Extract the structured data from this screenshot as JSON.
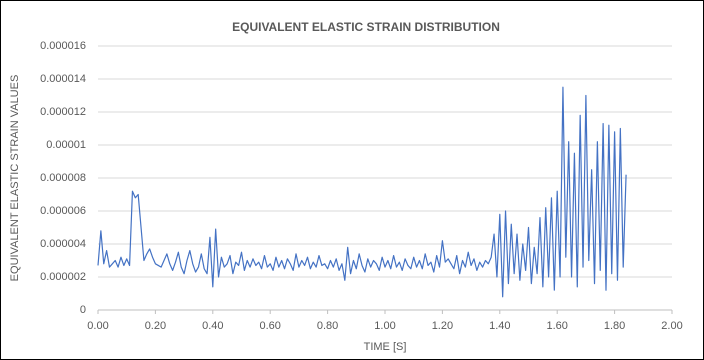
{
  "chart_data": {
    "type": "line",
    "title": "EQUIVALENT ELASTIC STRAIN DISTRIBUTION",
    "x_label": "TIME [S]",
    "y_label": "EQUIVALENT ELASTIC STRAIN VALUES",
    "xlim": [
      0,
      2
    ],
    "ylim": [
      0,
      1.6e-05
    ],
    "xticks": [
      {
        "value": 0,
        "label": "0.00"
      },
      {
        "value": 0.2,
        "label": "0.20"
      },
      {
        "value": 0.4,
        "label": "0.40"
      },
      {
        "value": 0.6,
        "label": "0.60"
      },
      {
        "value": 0.8,
        "label": "0.80"
      },
      {
        "value": 1,
        "label": "1.00"
      },
      {
        "value": 1.2,
        "label": "1.20"
      },
      {
        "value": 1.4,
        "label": "1.40"
      },
      {
        "value": 1.6,
        "label": "1.60"
      },
      {
        "value": 1.8,
        "label": "1.80"
      },
      {
        "value": 2,
        "label": "2.00"
      }
    ],
    "yticks": [
      0,
      2e-06,
      4e-06,
      6e-06,
      8e-06,
      1e-05,
      1.2e-05,
      1.4e-05,
      1.6e-05
    ],
    "grid": true,
    "x": [
      0,
      0.01,
      0.02,
      0.03,
      0.04,
      0.05,
      0.06,
      0.07,
      0.08,
      0.09,
      0.1,
      0.11,
      0.12,
      0.13,
      0.14,
      0.15,
      0.16,
      0.17,
      0.18,
      0.19,
      0.2,
      0.21,
      0.22,
      0.23,
      0.24,
      0.25,
      0.26,
      0.27,
      0.28,
      0.29,
      0.3,
      0.31,
      0.32,
      0.33,
      0.34,
      0.35,
      0.36,
      0.37,
      0.38,
      0.39,
      0.4,
      0.41,
      0.42,
      0.43,
      0.44,
      0.45,
      0.46,
      0.47,
      0.48,
      0.49,
      0.5,
      0.51,
      0.52,
      0.53,
      0.54,
      0.55,
      0.56,
      0.57,
      0.58,
      0.59,
      0.6,
      0.61,
      0.62,
      0.63,
      0.64,
      0.65,
      0.66,
      0.67,
      0.68,
      0.69,
      0.7,
      0.71,
      0.72,
      0.73,
      0.74,
      0.75,
      0.76,
      0.77,
      0.78,
      0.79,
      0.8,
      0.81,
      0.82,
      0.83,
      0.84,
      0.85,
      0.86,
      0.87,
      0.88,
      0.89,
      0.9,
      0.91,
      0.92,
      0.93,
      0.94,
      0.95,
      0.96,
      0.97,
      0.98,
      0.99,
      1,
      1.01,
      1.02,
      1.03,
      1.04,
      1.05,
      1.06,
      1.07,
      1.08,
      1.09,
      1.1,
      1.11,
      1.12,
      1.13,
      1.14,
      1.15,
      1.16,
      1.17,
      1.18,
      1.19,
      1.2,
      1.21,
      1.22,
      1.23,
      1.24,
      1.25,
      1.26,
      1.27,
      1.28,
      1.29,
      1.3,
      1.31,
      1.32,
      1.33,
      1.34,
      1.35,
      1.36,
      1.37,
      1.38,
      1.39,
      1.4,
      1.41,
      1.42,
      1.43,
      1.44,
      1.45,
      1.46,
      1.47,
      1.48,
      1.49,
      1.5,
      1.51,
      1.52,
      1.53,
      1.54,
      1.55,
      1.56,
      1.57,
      1.58,
      1.59,
      1.6,
      1.61,
      1.62,
      1.63,
      1.64,
      1.65,
      1.66,
      1.67,
      1.68,
      1.69,
      1.7,
      1.71,
      1.72,
      1.73,
      1.74,
      1.75,
      1.76,
      1.77,
      1.78,
      1.79,
      1.8,
      1.81,
      1.82,
      1.83,
      1.84
    ],
    "series": [
      {
        "name": "Equivalent Elastic Strain",
        "color": "#4472c4",
        "values": [
          2.7e-06,
          4.8e-06,
          2.8e-06,
          3.6e-06,
          2.6e-06,
          2.8e-06,
          3e-06,
          2.6e-06,
          3.2e-06,
          2.7e-06,
          3.1e-06,
          2.7e-06,
          7.2e-06,
          6.8e-06,
          7e-06,
          5e-06,
          3e-06,
          3.4e-06,
          3.7e-06,
          3.2e-06,
          2.8e-06,
          2.7e-06,
          2.6e-06,
          3e-06,
          3.4e-06,
          2.8e-06,
          2.4e-06,
          2.9e-06,
          3.5e-06,
          2.6e-06,
          2.2e-06,
          3e-06,
          3.6e-06,
          2.8e-06,
          2.3e-06,
          2.6e-06,
          3.4e-06,
          2.5e-06,
          2.2e-06,
          4.4e-06,
          1.4e-06,
          4.9e-06,
          2e-06,
          3.2e-06,
          2.6e-06,
          2.8e-06,
          3.3e-06,
          2.2e-06,
          2.9e-06,
          2.7e-06,
          3.5e-06,
          2.4e-06,
          3e-06,
          2.6e-06,
          3.1e-06,
          2.7e-06,
          2.9e-06,
          2.5e-06,
          3.3e-06,
          2.6e-06,
          2.8e-06,
          2.4e-06,
          3.2e-06,
          2.6e-06,
          3e-06,
          2.5e-06,
          3.1e-06,
          2.8e-06,
          2.4e-06,
          3.4e-06,
          2.6e-06,
          3e-06,
          2.7e-06,
          3.2e-06,
          2.5e-06,
          2.9e-06,
          2.6e-06,
          3.3e-06,
          2.7e-06,
          2.8e-06,
          2.5e-06,
          3e-06,
          2.6e-06,
          3.1e-06,
          2.4e-06,
          2.8e-06,
          1.8e-06,
          3.8e-06,
          2.2e-06,
          3e-06,
          2.5e-06,
          3.4e-06,
          2.7e-06,
          2.3e-06,
          3.1e-06,
          2.6e-06,
          3e-06,
          2.8e-06,
          2.4e-06,
          3.2e-06,
          2.6e-06,
          3e-06,
          2.5e-06,
          3.3e-06,
          2.6e-06,
          2.9e-06,
          2.4e-06,
          3.1e-06,
          2.7e-06,
          2.5e-06,
          3.2e-06,
          2.6e-06,
          3e-06,
          2.5e-06,
          3.4e-06,
          2.7e-06,
          2.9e-06,
          2.3e-06,
          3.3e-06,
          2.6e-06,
          4.2e-06,
          2.9e-06,
          3.1e-06,
          2.8e-06,
          2.5e-06,
          3.3e-06,
          2.2e-06,
          3e-06,
          2.6e-06,
          3.5e-06,
          2.7e-06,
          3.1e-06,
          2.4e-06,
          2.9e-06,
          2.6e-06,
          3e-06,
          2.8e-06,
          3.2e-06,
          4.6e-06,
          2e-06,
          5.8e-06,
          8e-07,
          6e-06,
          1.6e-06,
          5.2e-06,
          2.2e-06,
          4.6e-06,
          1.8e-06,
          4e-06,
          2.4e-06,
          5e-06,
          1.6e-06,
          3.8e-06,
          2.2e-06,
          5.6e-06,
          1.4e-06,
          6.2e-06,
          2e-06,
          6.8e-06,
          1.2e-06,
          7.2e-06,
          2e-06,
          1.35e-05,
          3.2e-06,
          1.02e-05,
          2e-06,
          9.5e-06,
          1.4e-06,
          1.18e-05,
          2.6e-06,
          1.3e-05,
          3e-06,
          8.5e-06,
          1.6e-06,
          1.02e-05,
          2.4e-06,
          1.13e-05,
          1.2e-06,
          1.12e-05,
          2.2e-06,
          1.08e-05,
          1.8e-06,
          1.1e-05,
          2.6e-06,
          8.2e-06
        ]
      }
    ]
  }
}
